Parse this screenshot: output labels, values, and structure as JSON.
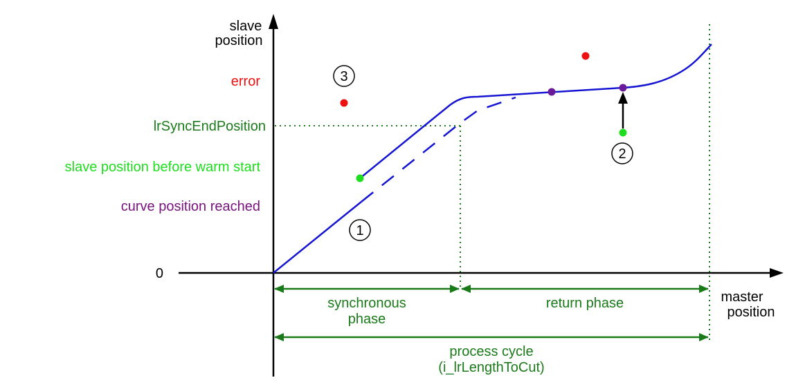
{
  "axes": {
    "y_label_line1": "slave",
    "y_label_line2": "position",
    "x_label_line1": "master",
    "x_label_line2": "position",
    "origin_label": "0"
  },
  "y_labels": {
    "error": "error",
    "sync_end": "lrSyncEndPosition",
    "before_warm_start": "slave position before warm start",
    "curve_reached": "curve position reached"
  },
  "phases": {
    "synchronous_line1": "synchronous",
    "synchronous_line2": "phase",
    "return": "return phase",
    "process_line1": "process cycle",
    "process_line2": "(i_lrLengthToCut)"
  },
  "markers": {
    "m1": "1",
    "m2": "2",
    "m3": "3"
  },
  "colors": {
    "curve": "#1414d2",
    "phase_green": "#1a7a1a",
    "point_green": "#1fdc1f",
    "point_purple": "#6a1b9a",
    "point_red": "#ee1111",
    "axis": "#000000"
  }
}
